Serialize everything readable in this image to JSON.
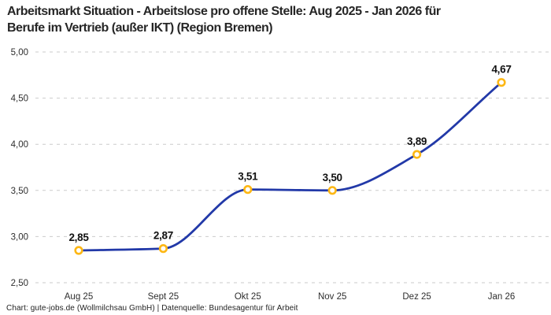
{
  "header": {
    "title_line1": "Arbeitsmarkt Situation - Arbeitslose pro offene Stelle: Aug 2025 - Jan 2026 für",
    "title_line2": "Berufe im Vertrieb (außer IKT) (Region Bremen)"
  },
  "footer": {
    "credit": "Chart: gute-jobs.de (Wollmilchsau GmbH) | Datenquelle: Bundesagentur für Arbeit"
  },
  "chart_data": {
    "type": "line",
    "title": "Arbeitsmarkt Situation - Arbeitslose pro offene Stelle: Aug 2025 - Jan 2026 für Berufe im Vertrieb (außer IKT) (Region Bremen)",
    "categories": [
      "Aug 25",
      "Sept 25",
      "Okt 25",
      "Nov 25",
      "Dez 25",
      "Jan 26"
    ],
    "values": [
      2.85,
      2.87,
      3.51,
      3.5,
      3.89,
      4.67
    ],
    "point_labels": [
      "2,85",
      "2,87",
      "3,51",
      "3,50",
      "3,89",
      "4,67"
    ],
    "ylim": [
      2.5,
      5.0
    ],
    "yticks": {
      "values": [
        5.0,
        4.5,
        4.0,
        3.5,
        3.0,
        2.5
      ],
      "labels": [
        "5,00",
        "4,50",
        "4,00",
        "3,50",
        "3,00",
        "2,50"
      ]
    },
    "xlabel": "",
    "ylabel": "",
    "legend": "none",
    "grid": "horizontal-dashed",
    "curve": "monotone",
    "colors": {
      "line": "#2239a8",
      "marker_ring": "#fdb714",
      "marker_fill": "#ffffff",
      "grid": "#cbcbcb",
      "title_text": "#262626",
      "axis_text": "#2e2e2e",
      "point_label_text": "#111111",
      "background": "#ffffff"
    }
  }
}
